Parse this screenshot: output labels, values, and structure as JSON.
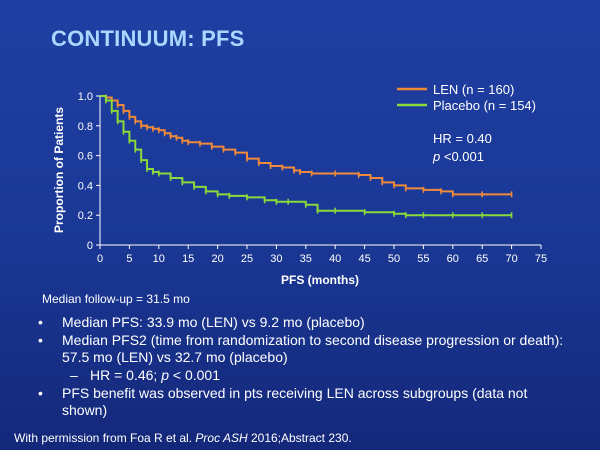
{
  "slide": {
    "title": "CONTINUUM: PFS",
    "followup": "Median follow-up = 31.5 mo",
    "bullets": [
      {
        "text": "Median PFS: 33.9 mo (LEN) vs 9.2 mo (placebo)"
      },
      {
        "text": "Median PFS2 (time from randomization to second disease progression or death): 57.5 mo (LEN) vs 32.7 mo (placebo)"
      },
      {
        "pre": "HR = 0.46; ",
        "italic": "p",
        "post": " < 0.001"
      },
      {
        "text": "PFS benefit was observed in pts receiving LEN across subgroups (data not shown)"
      }
    ],
    "credit": {
      "pre": "With permission from Foa R et al. ",
      "italic": "Proc ASH",
      "post": " 2016;Abstract 230."
    }
  },
  "chart_data": {
    "type": "line",
    "xlabel": "PFS (months)",
    "ylabel": "Proportion of Patients",
    "xlim": [
      0,
      75
    ],
    "ylim": [
      0,
      1.0
    ],
    "xticks": [
      "0",
      "5",
      "10",
      "15",
      "20",
      "25",
      "30",
      "35",
      "40",
      "45",
      "50",
      "55",
      "60",
      "65",
      "70",
      "75"
    ],
    "yticks": [
      "0",
      "0.2",
      "0.4",
      "0.6",
      "0.8",
      "1.0"
    ],
    "annotation": {
      "hr": "HR = 0.40",
      "p_italic": "p",
      "p_rest": " <0.001"
    },
    "series": [
      {
        "name": "LEN (n = 160)",
        "color": "#f08a3a",
        "points": [
          [
            0,
            1.0
          ],
          [
            1,
            0.99
          ],
          [
            2,
            0.97
          ],
          [
            3,
            0.94
          ],
          [
            4,
            0.9
          ],
          [
            5,
            0.86
          ],
          [
            6,
            0.83
          ],
          [
            7,
            0.8
          ],
          [
            8,
            0.79
          ],
          [
            9,
            0.78
          ],
          [
            10,
            0.77
          ],
          [
            11,
            0.75
          ],
          [
            12,
            0.73
          ],
          [
            13,
            0.72
          ],
          [
            14,
            0.7
          ],
          [
            15,
            0.69
          ],
          [
            17,
            0.68
          ],
          [
            19,
            0.66
          ],
          [
            21,
            0.64
          ],
          [
            23,
            0.62
          ],
          [
            25,
            0.58
          ],
          [
            27,
            0.55
          ],
          [
            29,
            0.53
          ],
          [
            31,
            0.52
          ],
          [
            33,
            0.5
          ],
          [
            34,
            0.49
          ],
          [
            36,
            0.48
          ],
          [
            40,
            0.48
          ],
          [
            44,
            0.47
          ],
          [
            46,
            0.45
          ],
          [
            48,
            0.42
          ],
          [
            50,
            0.4
          ],
          [
            52,
            0.38
          ],
          [
            55,
            0.37
          ],
          [
            58,
            0.36
          ],
          [
            60,
            0.34
          ],
          [
            65,
            0.34
          ],
          [
            70,
            0.34
          ]
        ]
      },
      {
        "name": "Placebo (n = 154)",
        "color": "#8cd93a",
        "points": [
          [
            0,
            1.0
          ],
          [
            1,
            0.97
          ],
          [
            2,
            0.9
          ],
          [
            3,
            0.83
          ],
          [
            4,
            0.76
          ],
          [
            5,
            0.7
          ],
          [
            6,
            0.64
          ],
          [
            7,
            0.57
          ],
          [
            8,
            0.51
          ],
          [
            9,
            0.49
          ],
          [
            10,
            0.48
          ],
          [
            12,
            0.45
          ],
          [
            14,
            0.42
          ],
          [
            16,
            0.39
          ],
          [
            18,
            0.36
          ],
          [
            20,
            0.34
          ],
          [
            22,
            0.33
          ],
          [
            25,
            0.32
          ],
          [
            28,
            0.3
          ],
          [
            30,
            0.29
          ],
          [
            32,
            0.29
          ],
          [
            35,
            0.27
          ],
          [
            37,
            0.23
          ],
          [
            40,
            0.23
          ],
          [
            45,
            0.22
          ],
          [
            50,
            0.21
          ],
          [
            52,
            0.2
          ],
          [
            55,
            0.2
          ],
          [
            60,
            0.2
          ],
          [
            65,
            0.2
          ],
          [
            70,
            0.2
          ]
        ]
      }
    ]
  }
}
